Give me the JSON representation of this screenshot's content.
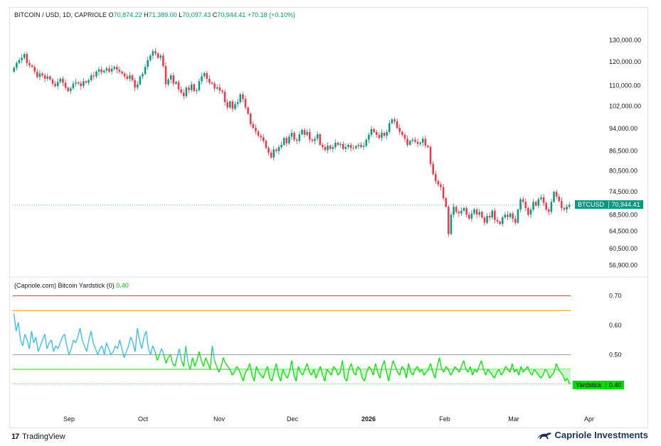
{
  "legend": {
    "title": "BITCOIN / USD, 1D, CAPRIOLE",
    "o_label": "O",
    "o_value": "70,874.22",
    "h_label": "H",
    "h_value": "71,389.00",
    "l_label": "L",
    "l_value": "70,097.43",
    "c_label": "C",
    "c_value": "70,944.41",
    "change": "+70.18 (+0.10%)"
  },
  "indicator": {
    "title": "(Capriole.com) Bitcoin Yardstick (0)",
    "value": "0.40"
  },
  "badges": {
    "symbol": "BTCUSD",
    "price": "70,944.41",
    "indicator_name": "Yardstick",
    "indicator_value": "0.40"
  },
  "footer": {
    "platform": "TradingView",
    "brand": "Capriole Investments"
  },
  "colors": {
    "up": "#089981",
    "down": "#f23645",
    "yardstick_high": "#2ebdf0",
    "yardstick_low": "#00e600",
    "fill_low": "#c8f5c8",
    "line_070": "#f23645",
    "line_065": "#ff9800",
    "line_050": "#9598a1",
    "line_045": "#00e600"
  },
  "chart_data": [
    {
      "type": "candlestick",
      "title": "BITCOIN / USD, 1D, CAPRIOLE",
      "scale": "log",
      "x_ticks": [
        "Sep",
        "Oct",
        "Nov",
        "Dec",
        "2026",
        "Feb",
        "Mar",
        "Apr"
      ],
      "y_ticks": [
        "130,000.00",
        "120,000.00",
        "110,000.00",
        "102,000.00",
        "94,000.00",
        "86,500.00",
        "80,500.00",
        "74,500.00",
        "68,500.00",
        "64,500.00",
        "60,500.00",
        "56,900.00"
      ],
      "y_tick_values": [
        130000,
        120000,
        110000,
        102000,
        94000,
        86500,
        80500,
        74500,
        68500,
        64500,
        60500,
        56900
      ],
      "ylim": [
        55500,
        140000
      ],
      "last_close": 70944.41,
      "closes": [
        117500,
        119500,
        120800,
        121800,
        123500,
        119500,
        118500,
        117800,
        115800,
        113500,
        115000,
        114200,
        112800,
        113800,
        112500,
        110800,
        109800,
        111500,
        112800,
        111200,
        109200,
        107800,
        108900,
        110800,
        111300,
        110900,
        109800,
        111800,
        111200,
        112200,
        114200,
        113800,
        115800,
        116800,
        115500,
        116200,
        117200,
        115800,
        117000,
        117800,
        116600,
        115800,
        115000,
        113800,
        112800,
        114200,
        112200,
        109200,
        110500,
        113800,
        114800,
        117800,
        120800,
        122800,
        124800,
        123800,
        121800,
        122800,
        118200,
        110500,
        112500,
        114200,
        110800,
        111500,
        108500,
        107200,
        105800,
        109200,
        108200,
        110500,
        107800,
        108200,
        111800,
        113800,
        115200,
        112800,
        111200,
        110800,
        108800,
        109300,
        108000,
        107500,
        103500,
        101500,
        103800,
        101000,
        102800,
        103500,
        106500,
        104800,
        101500,
        99200,
        95500,
        94200,
        93000,
        91500,
        91000,
        89800,
        87500,
        86000,
        84500,
        87000,
        86500,
        87800,
        88500,
        90800,
        89000,
        91200,
        92500,
        90200,
        89800,
        92000,
        93500,
        91800,
        92800,
        90200,
        89800,
        90500,
        92000,
        88500,
        87800,
        86800,
        88200,
        87200,
        87800,
        89200,
        88500,
        88800,
        87200,
        87800,
        88500,
        87500,
        87400,
        88100,
        88500,
        87800,
        88200,
        90200,
        91800,
        93800,
        92800,
        91800,
        90800,
        92500,
        91500,
        92800,
        95800,
        97200,
        96500,
        94200,
        92800,
        91800,
        90500,
        88500,
        89800,
        90200,
        89500,
        88800,
        89200,
        90500,
        88200,
        87800,
        82500,
        79500,
        77500,
        76500,
        75800,
        72800,
        70500,
        63800,
        68500,
        70500,
        69200,
        68800,
        69500,
        70200,
        68500,
        67500,
        68800,
        69800,
        68500,
        69200,
        67800,
        66500,
        68200,
        67800,
        69500,
        67200,
        66800,
        66200,
        67800,
        68500,
        67900,
        68800,
        67500,
        66500,
        69800,
        72500,
        71800,
        70200,
        68500,
        69800,
        71800,
        70800,
        72500,
        73000,
        71500,
        69800,
        69200,
        71800,
        74500,
        73200,
        72000,
        70200,
        69800,
        70500,
        70944
      ]
    },
    {
      "type": "line",
      "title": "(Capriole.com) Bitcoin Yardstick (0)",
      "series_name": "Yardstick",
      "y_ticks": [
        "0.70",
        "0.60",
        "0.50"
      ],
      "y_tick_values": [
        0.7,
        0.6,
        0.5
      ],
      "ylim": [
        0.31,
        0.74
      ],
      "levels": [
        0.7,
        0.65,
        0.5,
        0.45
      ],
      "last_value": 0.4,
      "values": [
        0.64,
        0.58,
        0.61,
        0.55,
        0.53,
        0.57,
        0.55,
        0.52,
        0.58,
        0.54,
        0.56,
        0.51,
        0.53,
        0.55,
        0.57,
        0.52,
        0.54,
        0.55,
        0.51,
        0.53,
        0.52,
        0.54,
        0.56,
        0.57,
        0.53,
        0.5,
        0.52,
        0.55,
        0.54,
        0.56,
        0.59,
        0.55,
        0.53,
        0.51,
        0.55,
        0.58,
        0.54,
        0.52,
        0.5,
        0.52,
        0.53,
        0.5,
        0.54,
        0.52,
        0.5,
        0.51,
        0.53,
        0.52,
        0.55,
        0.52,
        0.49,
        0.51,
        0.53,
        0.56,
        0.54,
        0.51,
        0.59,
        0.55,
        0.52,
        0.56,
        0.58,
        0.52,
        0.5,
        0.53,
        0.51,
        0.48,
        0.5,
        0.52,
        0.5,
        0.47,
        0.49,
        0.5,
        0.47,
        0.46,
        0.49,
        0.52,
        0.48,
        0.46,
        0.53,
        0.47,
        0.45,
        0.49,
        0.46,
        0.48,
        0.51,
        0.48,
        0.46,
        0.49,
        0.47,
        0.45,
        0.53,
        0.48,
        0.46,
        0.44,
        0.46,
        0.49,
        0.47,
        0.46,
        0.45,
        0.43,
        0.44,
        0.46,
        0.45,
        0.43,
        0.41,
        0.44,
        0.45,
        0.47,
        0.43,
        0.41,
        0.46,
        0.44,
        0.43,
        0.42,
        0.44,
        0.46,
        0.42,
        0.41,
        0.44,
        0.47,
        0.43,
        0.41,
        0.45,
        0.43,
        0.42,
        0.44,
        0.48,
        0.43,
        0.41,
        0.46,
        0.44,
        0.43,
        0.45,
        0.47,
        0.44,
        0.43,
        0.45,
        0.42,
        0.44,
        0.46,
        0.43,
        0.41,
        0.45,
        0.44,
        0.43,
        0.46,
        0.45,
        0.43,
        0.44,
        0.48,
        0.42,
        0.41,
        0.45,
        0.47,
        0.44,
        0.43,
        0.46,
        0.45,
        0.42,
        0.41,
        0.44,
        0.46,
        0.45,
        0.43,
        0.47,
        0.44,
        0.42,
        0.46,
        0.48,
        0.44,
        0.41,
        0.45,
        0.48,
        0.46,
        0.44,
        0.43,
        0.46,
        0.45,
        0.42,
        0.47,
        0.44,
        0.43,
        0.45,
        0.46,
        0.44,
        0.45,
        0.43,
        0.44,
        0.45,
        0.47,
        0.44,
        0.42,
        0.46,
        0.49,
        0.45,
        0.44,
        0.46,
        0.45,
        0.43,
        0.44,
        0.46,
        0.45,
        0.44,
        0.46,
        0.48,
        0.45,
        0.44,
        0.46,
        0.43,
        0.45,
        0.44,
        0.46,
        0.48,
        0.45,
        0.43,
        0.45,
        0.44,
        0.43,
        0.42,
        0.44,
        0.45,
        0.43,
        0.44,
        0.46,
        0.45,
        0.44,
        0.47,
        0.44,
        0.45,
        0.43,
        0.46,
        0.44,
        0.45,
        0.46,
        0.44,
        0.43,
        0.45,
        0.44,
        0.43,
        0.42,
        0.43,
        0.45,
        0.44,
        0.42,
        0.43,
        0.44,
        0.47,
        0.45,
        0.44,
        0.43,
        0.41,
        0.42,
        0.4
      ]
    }
  ]
}
